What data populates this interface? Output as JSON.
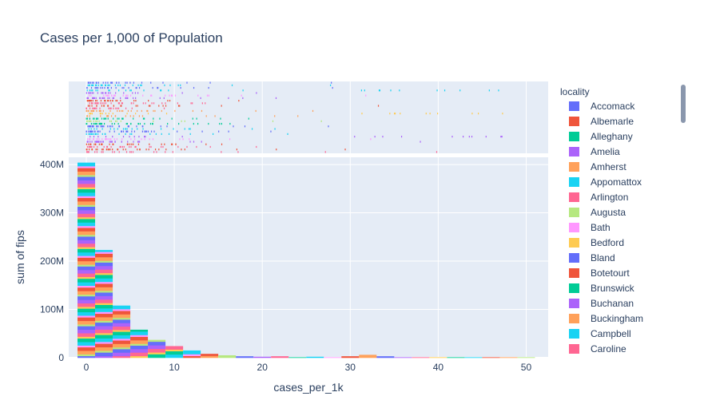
{
  "chart_data": {
    "type": "bar",
    "title": "Cases per 1,000 of Population",
    "xlabel": "cases_per_1k",
    "ylabel": "sum of fips",
    "legend_title": "locality",
    "legend_position": "right",
    "xlim": [
      -2,
      52.5
    ],
    "ylim": [
      0,
      415
    ],
    "x_ticks": [
      0,
      10,
      20,
      30,
      40,
      50
    ],
    "x_tick_labels": [
      "0",
      "10",
      "20",
      "30",
      "40",
      "50"
    ],
    "y_ticks": [
      0,
      100,
      200,
      300,
      400
    ],
    "y_tick_labels": [
      "0",
      "100M",
      "200M",
      "300M",
      "400M"
    ],
    "y_unit": "M",
    "bin_width": 2,
    "bins": [
      {
        "x0": -1,
        "x1": 1,
        "total": 404
      },
      {
        "x0": 1,
        "x1": 3,
        "total": 223
      },
      {
        "x0": 3,
        "x1": 5,
        "total": 108
      },
      {
        "x0": 5,
        "x1": 7,
        "total": 58
      },
      {
        "x0": 7,
        "x1": 9,
        "total": 37
      },
      {
        "x0": 9,
        "x1": 11,
        "total": 24
      },
      {
        "x0": 11,
        "x1": 13,
        "total": 15
      },
      {
        "x0": 13,
        "x1": 15,
        "total": 8
      },
      {
        "x0": 15,
        "x1": 17,
        "total": 5
      },
      {
        "x0": 17,
        "x1": 19,
        "total": 3
      },
      {
        "x0": 19,
        "x1": 21,
        "total": 2
      },
      {
        "x0": 21,
        "x1": 23,
        "total": 3
      },
      {
        "x0": 23,
        "x1": 25,
        "total": 1
      },
      {
        "x0": 25,
        "x1": 27,
        "total": 2
      },
      {
        "x0": 27,
        "x1": 29,
        "total": 1
      },
      {
        "x0": 29,
        "x1": 31,
        "total": 3
      },
      {
        "x0": 31,
        "x1": 33,
        "total": 6
      },
      {
        "x0": 33,
        "x1": 35,
        "total": 3
      },
      {
        "x0": 35,
        "x1": 37,
        "total": 1
      },
      {
        "x0": 37,
        "x1": 39,
        "total": 1
      },
      {
        "x0": 39,
        "x1": 41,
        "total": 1
      },
      {
        "x0": 41,
        "x1": 43,
        "total": 1
      },
      {
        "x0": 43,
        "x1": 45,
        "total": 1
      },
      {
        "x0": 45,
        "x1": 47,
        "total": 1
      },
      {
        "x0": 47,
        "x1": 49,
        "total": 1
      },
      {
        "x0": 49,
        "x1": 51,
        "total": 1
      }
    ],
    "marginal": "rug",
    "series": [
      {
        "name": "Accomack",
        "color": "#636efa"
      },
      {
        "name": "Albemarle",
        "color": "#EF553B"
      },
      {
        "name": "Alleghany",
        "color": "#00cc96"
      },
      {
        "name": "Amelia",
        "color": "#ab63fa"
      },
      {
        "name": "Amherst",
        "color": "#FFA15A"
      },
      {
        "name": "Appomattox",
        "color": "#19d3f3"
      },
      {
        "name": "Arlington",
        "color": "#FF6692"
      },
      {
        "name": "Augusta",
        "color": "#B6E880"
      },
      {
        "name": "Bath",
        "color": "#FF97FF"
      },
      {
        "name": "Bedford",
        "color": "#FECB52"
      },
      {
        "name": "Bland",
        "color": "#636efa"
      },
      {
        "name": "Botetourt",
        "color": "#EF553B"
      },
      {
        "name": "Brunswick",
        "color": "#00cc96"
      },
      {
        "name": "Buchanan",
        "color": "#ab63fa"
      },
      {
        "name": "Buckingham",
        "color": "#FFA15A"
      },
      {
        "name": "Campbell",
        "color": "#19d3f3"
      },
      {
        "name": "Caroline",
        "color": "#FF6692"
      }
    ]
  }
}
